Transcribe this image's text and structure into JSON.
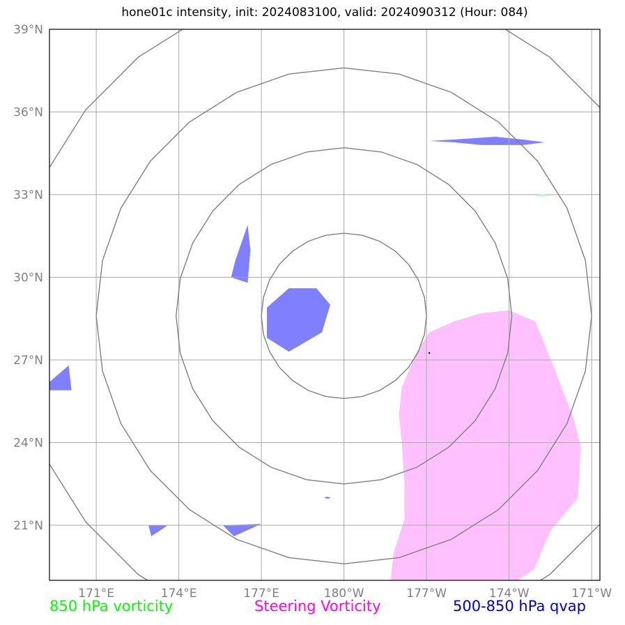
{
  "title": "hone01c intensity, init: 2024083100, valid: 2024090312 (Hour: 084)",
  "legend": {
    "green": "850 hPa vorticity",
    "magenta": "Steering Vorticity",
    "blue": "500-850 hPa qvap"
  },
  "colors": {
    "green": "#00ff00",
    "magenta": "#ff00ff",
    "blue": "#0000cc",
    "qvap_fill": "#8080ff",
    "steering_fill": "#ffc0ff",
    "contour": "#808080",
    "grid": "#aaaaaa"
  },
  "chart_data": {
    "type": "map",
    "xlim": [
      169.3,
      189.3
    ],
    "ylim": [
      19.0,
      39.0
    ],
    "lon_ticks": [
      {
        "value": 171,
        "label": "171°E"
      },
      {
        "value": 174,
        "label": "174°E"
      },
      {
        "value": 177,
        "label": "177°E"
      },
      {
        "value": 180,
        "label": "180°W"
      },
      {
        "value": 183,
        "label": "177°W"
      },
      {
        "value": 186,
        "label": "174°W"
      },
      {
        "value": 189,
        "label": "171°W"
      }
    ],
    "lat_ticks": [
      {
        "value": 21,
        "label": "21°N"
      },
      {
        "value": 24,
        "label": "24°N"
      },
      {
        "value": 27,
        "label": "27°N"
      },
      {
        "value": 30,
        "label": "30°N"
      },
      {
        "value": 33,
        "label": "33°N"
      },
      {
        "value": 36,
        "label": "36°N"
      },
      {
        "value": 39,
        "label": "39°N"
      }
    ],
    "storm_center": {
      "lon": 180.0,
      "lat": 28.6
    },
    "range_rings_deg": [
      3.0,
      6.1,
      9.0,
      12.0
    ],
    "steering_vorticity_region": [
      [
        182.65,
        27.3
      ],
      [
        183.1,
        28.0
      ],
      [
        184.0,
        28.4
      ],
      [
        185.0,
        28.7
      ],
      [
        186.0,
        28.8
      ],
      [
        186.95,
        28.4
      ],
      [
        187.6,
        26.8
      ],
      [
        188.3,
        25.0
      ],
      [
        188.6,
        23.9
      ],
      [
        188.5,
        22.0
      ],
      [
        187.5,
        20.8
      ],
      [
        186.9,
        19.4
      ],
      [
        186.0,
        18.8
      ],
      [
        183.0,
        18.9
      ],
      [
        181.7,
        19.0
      ],
      [
        181.8,
        20.0
      ],
      [
        182.2,
        21.2
      ],
      [
        182.2,
        22.5
      ],
      [
        182.1,
        24.0
      ],
      [
        182.0,
        25.0
      ],
      [
        182.1,
        26.0
      ]
    ],
    "qvap_regions": [
      [
        [
          177.2,
          28.9
        ],
        [
          178.0,
          29.6
        ],
        [
          179.0,
          29.6
        ],
        [
          179.5,
          29.0
        ],
        [
          179.2,
          28.0
        ],
        [
          178.0,
          27.3
        ],
        [
          177.2,
          27.8
        ]
      ],
      [
        [
          176.05,
          30.6
        ],
        [
          176.5,
          31.9
        ],
        [
          176.6,
          31.0
        ],
        [
          176.5,
          29.8
        ],
        [
          175.9,
          30.0
        ]
      ],
      [
        [
          184.0,
          35.0
        ],
        [
          185.5,
          35.1
        ],
        [
          186.5,
          35.0
        ],
        [
          187.3,
          34.9
        ],
        [
          186.5,
          34.8
        ],
        [
          185.0,
          34.8
        ],
        [
          184.0,
          34.9
        ],
        [
          183.1,
          34.95
        ]
      ],
      [
        [
          169.3,
          26.2
        ],
        [
          170.0,
          26.8
        ],
        [
          170.1,
          25.9
        ],
        [
          169.3,
          25.9
        ]
      ],
      [
        [
          175.6,
          21.0
        ],
        [
          177.0,
          21.05
        ],
        [
          176.0,
          20.6
        ]
      ],
      [
        [
          172.9,
          21.0
        ],
        [
          173.6,
          21.0
        ],
        [
          173.0,
          20.6
        ]
      ]
    ],
    "small_features": [
      {
        "type": "steering_speck",
        "lon": 179.4,
        "lat": 22.0
      },
      {
        "type": "850hPa_vorticity_speck",
        "lon": 187.2,
        "lat": 32.97
      }
    ],
    "grid": true
  }
}
